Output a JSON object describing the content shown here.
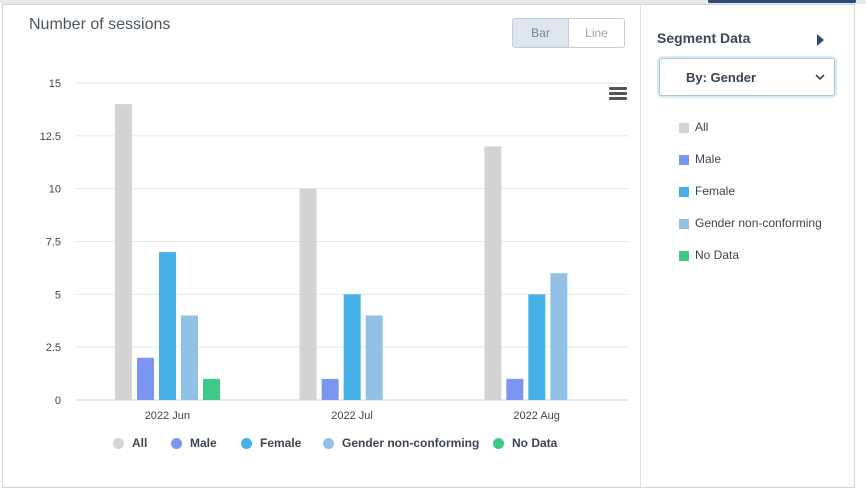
{
  "chart": {
    "title": "Number of sessions",
    "toggle": {
      "bar": "Bar",
      "line": "Line"
    }
  },
  "colors": {
    "All": "#d3d3d3",
    "Male": "#7b96f0",
    "Female": "#45b0e6",
    "Gender non-conforming": "#92c1e6",
    "No Data": "#3ec987"
  },
  "chart_data": {
    "type": "bar",
    "title": "Number of sessions",
    "categories": [
      "2022 Jun",
      "2022 Jul",
      "2022 Aug"
    ],
    "ylim": [
      0,
      15
    ],
    "yticks": [
      0,
      2.5,
      5,
      7.5,
      10,
      12.5,
      15
    ],
    "ytick_labels": [
      "0",
      "2.5",
      "5",
      "7.5",
      "10",
      "12.5",
      "15"
    ],
    "grid": true,
    "legend_position": "bottom",
    "series": [
      {
        "name": "All",
        "values": [
          14,
          10,
          12
        ]
      },
      {
        "name": "Male",
        "values": [
          2,
          1,
          1
        ]
      },
      {
        "name": "Female",
        "values": [
          7,
          5,
          5
        ]
      },
      {
        "name": "Gender non-conforming",
        "values": [
          4,
          4,
          6
        ]
      },
      {
        "name": "No Data",
        "values": [
          1,
          0,
          0
        ]
      }
    ]
  },
  "sidebar": {
    "title": "Segment Data",
    "select_value": "By: Gender",
    "segments": [
      "All",
      "Male",
      "Female",
      "Gender non-conforming",
      "No Data"
    ]
  }
}
